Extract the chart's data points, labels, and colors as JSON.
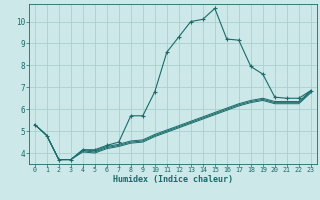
{
  "title": "",
  "xlabel": "Humidex (Indice chaleur)",
  "background_color": "#cce8e8",
  "grid_color": "#aacfcf",
  "line_color": "#1a6b6b",
  "xlim": [
    -0.5,
    23.5
  ],
  "ylim": [
    3.5,
    10.8
  ],
  "xticks": [
    0,
    1,
    2,
    3,
    4,
    5,
    6,
    7,
    8,
    9,
    10,
    11,
    12,
    13,
    14,
    15,
    16,
    17,
    18,
    19,
    20,
    21,
    22,
    23
  ],
  "yticks": [
    4,
    5,
    6,
    7,
    8,
    9,
    10
  ],
  "main_line": {
    "x": [
      0,
      1,
      2,
      3,
      4,
      5,
      6,
      7,
      8,
      9,
      10,
      11,
      12,
      13,
      14,
      15,
      16,
      17,
      18,
      19,
      20,
      21,
      22,
      23
    ],
    "y": [
      5.3,
      4.8,
      3.7,
      3.7,
      4.15,
      4.15,
      4.35,
      4.5,
      5.7,
      5.7,
      6.8,
      8.6,
      9.3,
      10.0,
      10.1,
      10.6,
      9.2,
      9.15,
      7.95,
      7.6,
      6.55,
      6.5,
      6.5,
      6.85
    ]
  },
  "secondary_lines": [
    {
      "x": [
        0,
        1,
        2,
        3,
        4,
        5,
        6,
        7,
        8,
        9,
        10,
        11,
        12,
        13,
        14,
        15,
        16,
        17,
        18,
        19,
        20,
        21,
        22,
        23
      ],
      "y": [
        5.3,
        4.8,
        3.7,
        3.7,
        4.15,
        4.1,
        4.3,
        4.4,
        4.55,
        4.6,
        4.85,
        5.05,
        5.25,
        5.45,
        5.65,
        5.85,
        6.05,
        6.25,
        6.4,
        6.5,
        6.35,
        6.35,
        6.35,
        6.85
      ]
    },
    {
      "x": [
        0,
        1,
        2,
        3,
        4,
        5,
        6,
        7,
        8,
        9,
        10,
        11,
        12,
        13,
        14,
        15,
        16,
        17,
        18,
        19,
        20,
        21,
        22,
        23
      ],
      "y": [
        5.3,
        4.8,
        3.7,
        3.7,
        4.1,
        4.05,
        4.25,
        4.35,
        4.5,
        4.55,
        4.8,
        5.0,
        5.2,
        5.4,
        5.6,
        5.8,
        6.0,
        6.2,
        6.35,
        6.45,
        6.3,
        6.3,
        6.3,
        6.8
      ]
    },
    {
      "x": [
        0,
        1,
        2,
        3,
        4,
        5,
        6,
        7,
        8,
        9,
        10,
        11,
        12,
        13,
        14,
        15,
        16,
        17,
        18,
        19,
        20,
        21,
        22,
        23
      ],
      "y": [
        5.3,
        4.8,
        3.7,
        3.7,
        4.05,
        4.0,
        4.2,
        4.3,
        4.45,
        4.5,
        4.75,
        4.95,
        5.15,
        5.35,
        5.55,
        5.75,
        5.95,
        6.15,
        6.3,
        6.4,
        6.25,
        6.25,
        6.25,
        6.75
      ]
    }
  ]
}
